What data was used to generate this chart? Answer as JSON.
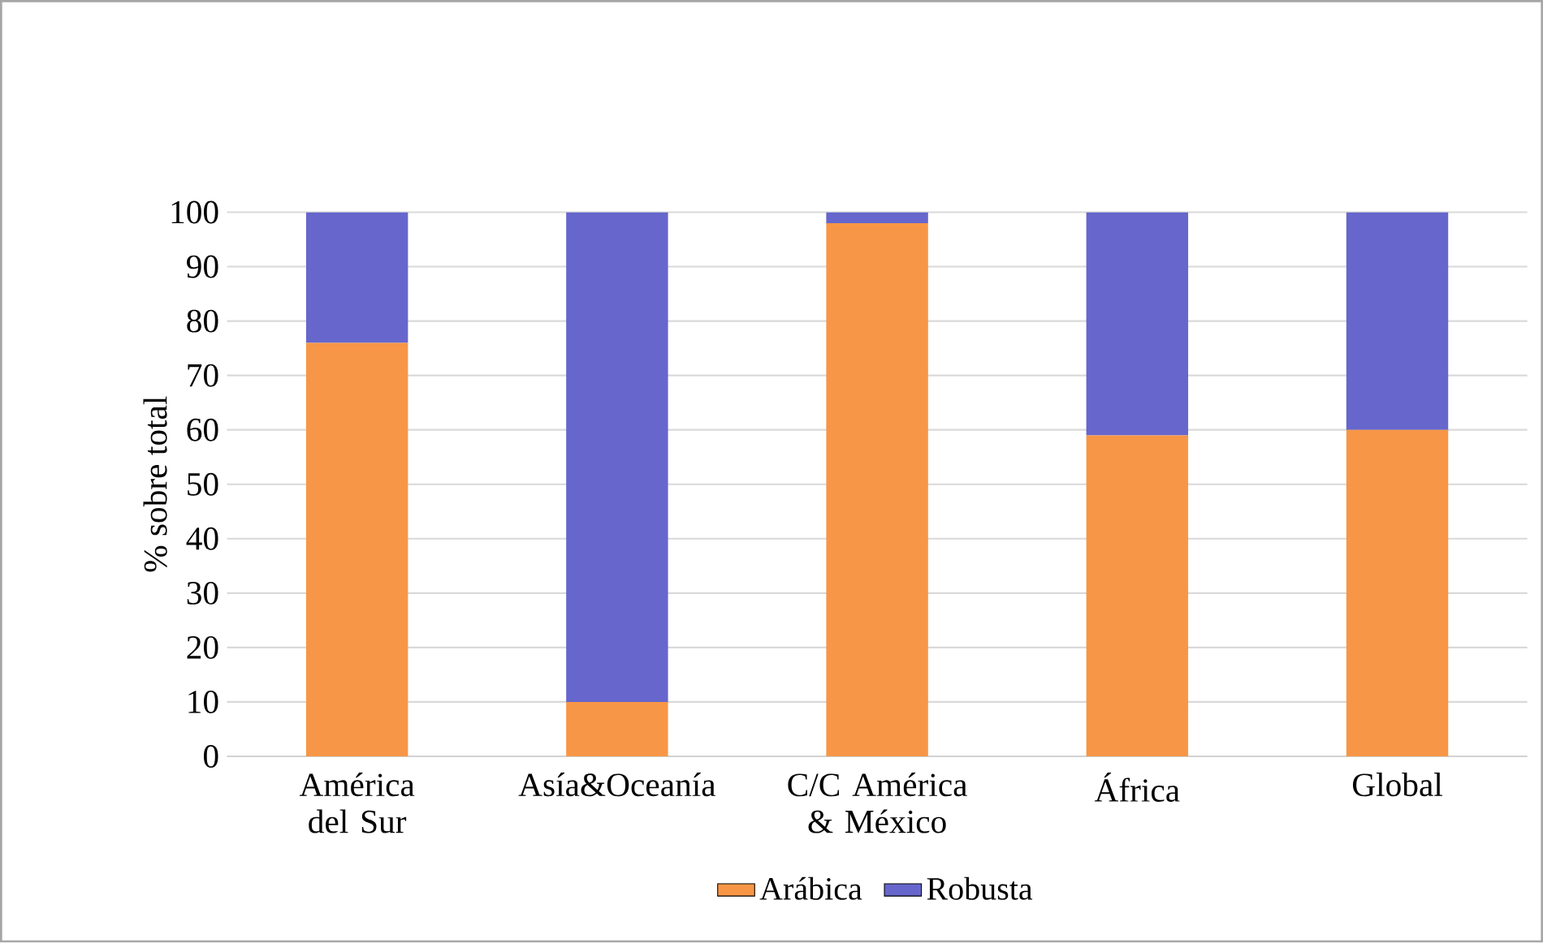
{
  "chart_data": {
    "type": "bar",
    "stacked": true,
    "ylabel": "% sobre total",
    "categories": [
      "América del Sur",
      "Asía&Oceanía",
      "C/C América & México",
      "África",
      "Global"
    ],
    "series": [
      {
        "name": "Arábica",
        "color": "#f79646",
        "values": [
          76,
          10,
          98,
          59,
          60
        ]
      },
      {
        "name": "Robusta",
        "color": "#6666cc",
        "values": [
          24,
          90,
          2,
          41,
          40
        ]
      }
    ],
    "ylim": [
      0,
      100
    ],
    "yticks": [
      0,
      10,
      20,
      30,
      40,
      50,
      60,
      70,
      80,
      90,
      100
    ],
    "grid": "y",
    "legend": "bottom"
  }
}
